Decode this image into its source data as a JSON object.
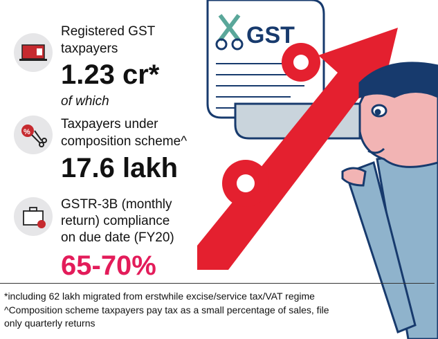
{
  "stats": [
    {
      "label_lines": [
        "Registered GST",
        "taxpayers"
      ],
      "value": "1.23 cr*",
      "icon": "laptop-icon"
    },
    {
      "connector": "of which"
    },
    {
      "label_lines": [
        "Taxpayers under",
        "composition scheme^"
      ],
      "value": "17.6 lakh",
      "icon": "scissors-percent-icon"
    },
    {
      "label_lines": [
        "GSTR-3B (monthly",
        "return) compliance",
        "on due date (FY20)"
      ],
      "value": "65-70%",
      "icon": "briefcase-icon"
    }
  ],
  "illustration": {
    "document_title": "GST",
    "percent_symbol": "%"
  },
  "footnotes": [
    "*including 62 lakh migrated from erstwhile excise/service tax/VAT regime",
    "^Composition scheme taxpayers pay tax as a small percentage of sales, file",
    "only quarterly returns"
  ],
  "colors": {
    "accent": "#e31c5a",
    "arrow": "#e4202f",
    "outline": "#173a6d",
    "shirt": "#8fb3cc"
  }
}
